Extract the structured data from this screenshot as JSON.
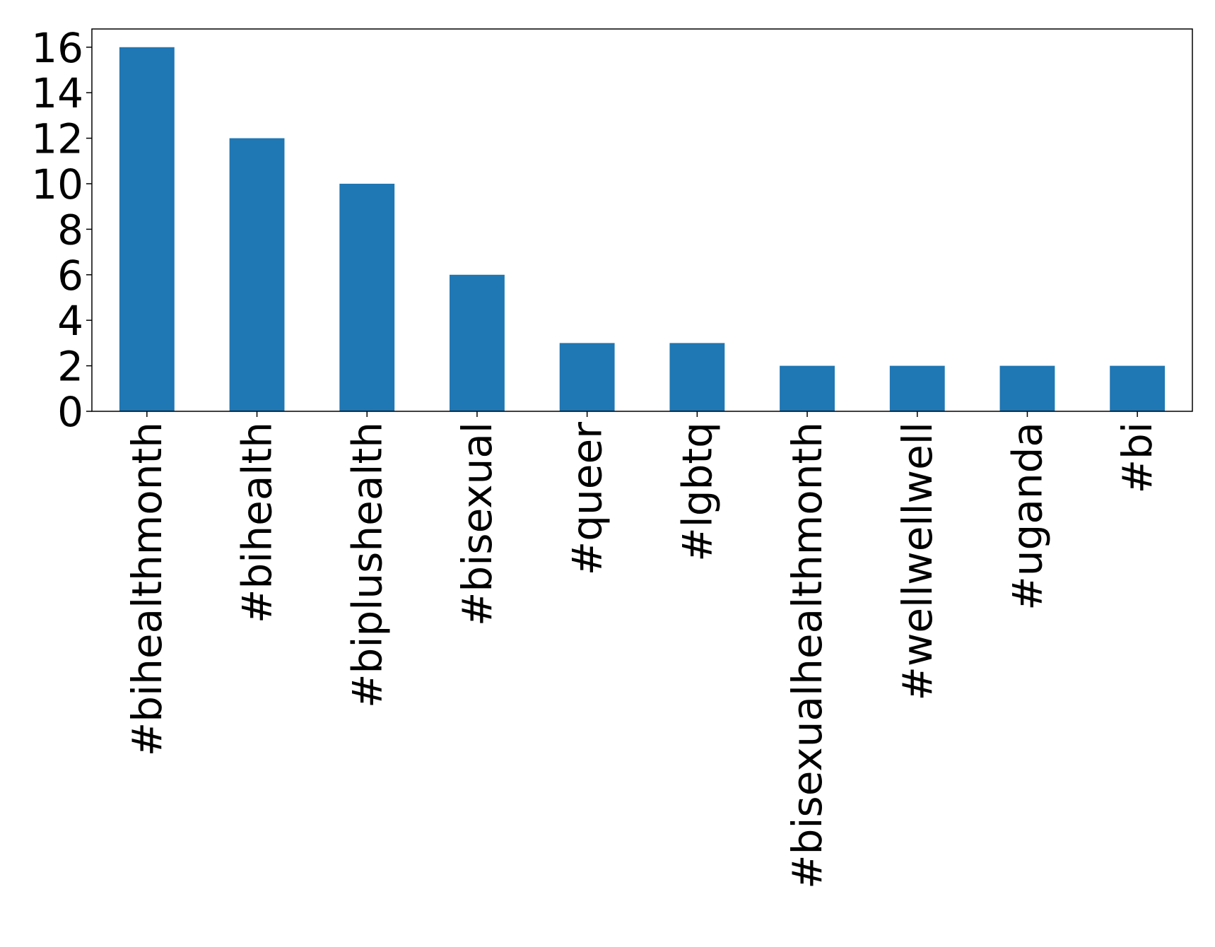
{
  "chart_data": {
    "type": "bar",
    "title": "",
    "xlabel": "",
    "ylabel": "",
    "categories": [
      "#bihealthmonth",
      "#bihealth",
      "#biplushealth",
      "#bisexual",
      "#queer",
      "#lgbtq",
      "#bisexualhealthmonth",
      "#wellwellwell",
      "#uganda",
      "#bi"
    ],
    "values": [
      16,
      12,
      10,
      6,
      3,
      3,
      2,
      2,
      2,
      2
    ],
    "ylim": [
      0,
      16.8
    ],
    "yticks": [
      0,
      2,
      4,
      6,
      8,
      10,
      12,
      14,
      16
    ],
    "bar_color": "#1f77b4",
    "grid": false,
    "legend": "none",
    "xtick_rotation": "vertical"
  }
}
